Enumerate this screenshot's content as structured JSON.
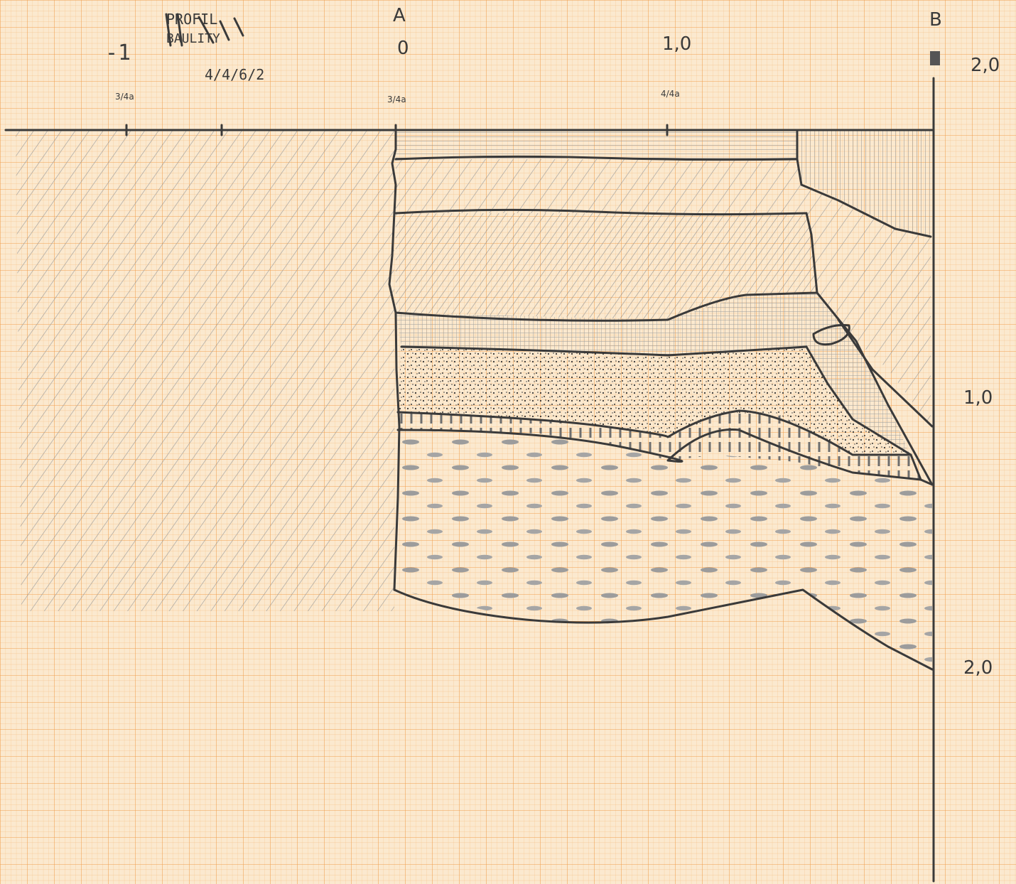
{
  "header": {
    "title_line1": "PROFIL",
    "title_line2": "BAULITY",
    "minus_one": "-1",
    "note": "4/4/6/2"
  },
  "axis": {
    "label_a": "A",
    "label_b": "B",
    "zero": "0",
    "one": "1,0",
    "two_top": "2,0",
    "depth_one": "1,0",
    "depth_two": "2,0",
    "tick_labels": [
      "3/4a",
      "3/4a",
      "4/4a"
    ]
  }
}
